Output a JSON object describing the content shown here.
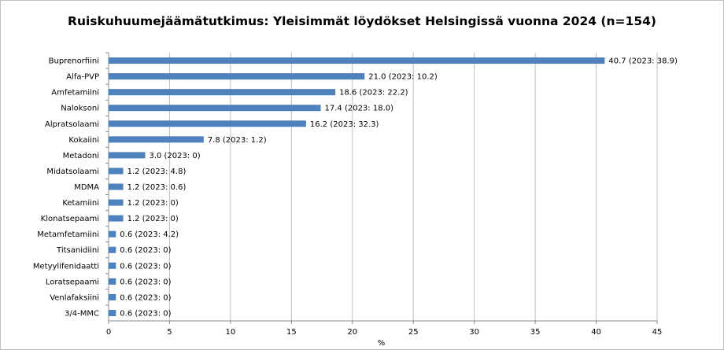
{
  "chart_data": {
    "type": "bar",
    "orientation": "horizontal",
    "title": "Ruiskuhuumejäämätutkimus: Yleisimmät löydökset Helsingissä vuonna 2024 (n=154)",
    "xlabel": "%",
    "ylabel": "",
    "xlim": [
      0,
      45
    ],
    "xticks": [
      "0",
      "5",
      "10",
      "15",
      "20",
      "25",
      "30",
      "35",
      "40",
      "45"
    ],
    "grid": true,
    "bar_color": "#4f81bd",
    "categories": [
      "Buprenorfiini",
      "Alfa-PVP",
      "Amfetamiini",
      "Naloksoni",
      "Alpratsolaami",
      "Kokaiini",
      "Metadoni",
      "Midatsolaami",
      "MDMA",
      "Ketamiini",
      "Klonatsepaami",
      "Metamfetamiini",
      "Titsanidiini",
      "Metyylifenidaatti",
      "Loratsepaami",
      "Venlafaksiini",
      "3/4-MMC"
    ],
    "values": [
      40.7,
      21.0,
      18.6,
      17.4,
      16.2,
      7.8,
      3.0,
      1.2,
      1.2,
      1.2,
      1.2,
      0.6,
      0.6,
      0.6,
      0.6,
      0.6,
      0.6
    ],
    "data_labels": [
      "40.7 (2023: 38.9)",
      "21.0 (2023: 10.2)",
      "18.6 (2023: 22.2)",
      "17.4 (2023: 18.0)",
      "16.2 (2023: 32.3)",
      "7.8 (2023: 1.2)",
      "3.0 (2023: 0)",
      "1.2 (2023: 4.8)",
      "1.2 (2023: 0.6)",
      "1.2 (2023: 0)",
      "1.2 (2023: 0)",
      "0.6 (2023: 4.2)",
      "0.6 (2023: 0)",
      "0.6 (2023: 0)",
      "0.6 (2023: 0)",
      "0.6 (2023: 0)",
      "0.6 (2023: 0)"
    ]
  }
}
